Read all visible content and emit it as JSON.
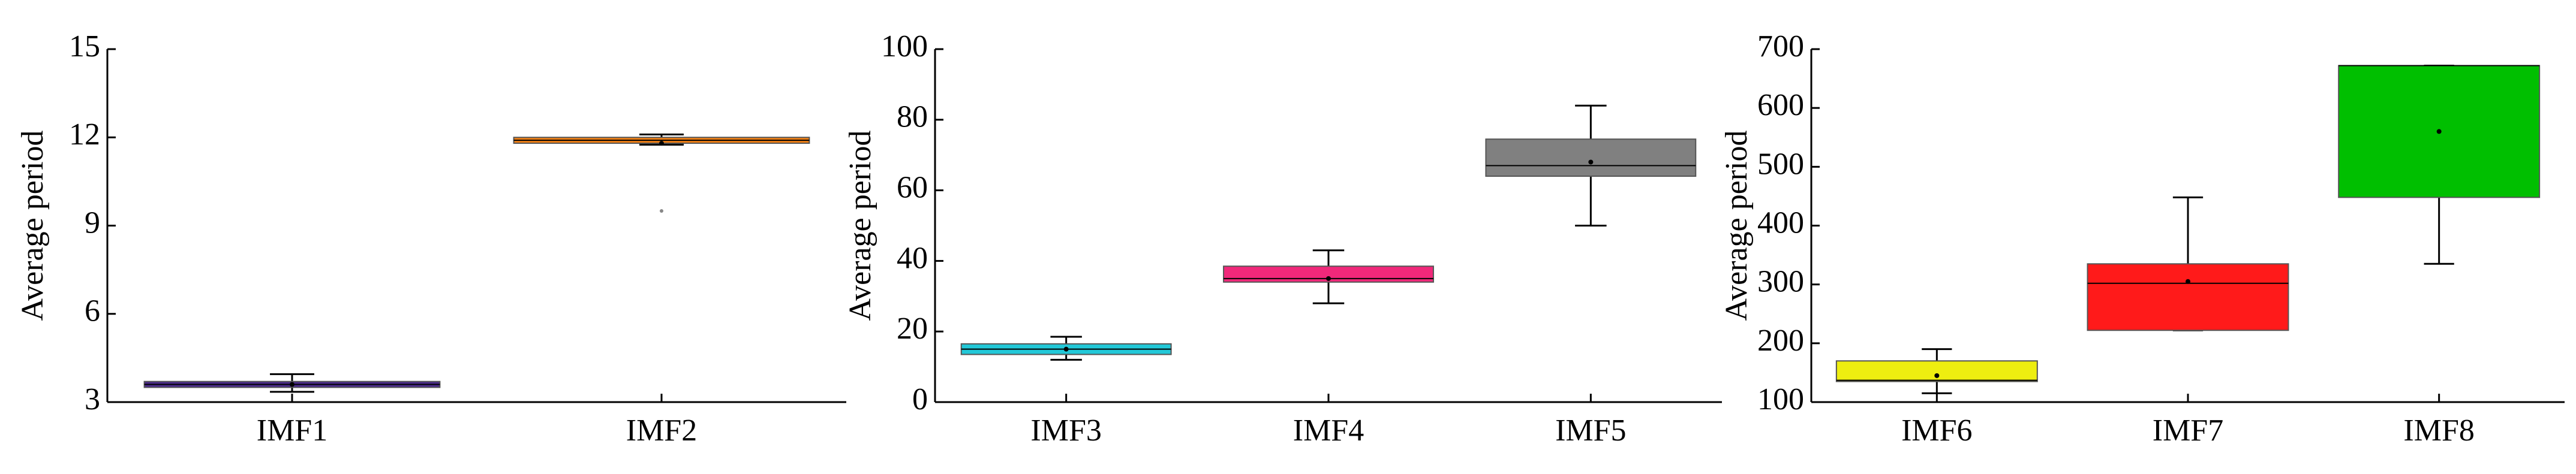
{
  "chart_data": [
    {
      "type": "box",
      "ylabel": "Average period",
      "ylim": [
        3,
        15
      ],
      "yticks": [
        3,
        6,
        9,
        12,
        15
      ],
      "categories": [
        "IMF1",
        "IMF2"
      ],
      "colors": [
        "#4b2a8c",
        "#f07f14"
      ],
      "boxes": [
        {
          "low": 3.35,
          "q1": 3.5,
          "median": 3.6,
          "q3": 3.7,
          "high": 3.95,
          "mean": 3.6
        },
        {
          "low": 11.75,
          "q1": 11.8,
          "median": 11.9,
          "q3": 12.0,
          "high": 12.1,
          "mean": 11.8,
          "outliers": [
            9.5
          ]
        }
      ]
    },
    {
      "type": "box",
      "ylabel": "Average period",
      "ylim": [
        0,
        100
      ],
      "yticks": [
        0,
        20,
        40,
        60,
        80,
        100
      ],
      "categories": [
        "IMF3",
        "IMF4",
        "IMF5"
      ],
      "colors": [
        "#22c8d8",
        "#f0287a",
        "#808080"
      ],
      "boxes": [
        {
          "low": 12,
          "q1": 13.5,
          "median": 15,
          "q3": 16.5,
          "high": 18.5,
          "mean": 15
        },
        {
          "low": 28,
          "q1": 34,
          "median": 35,
          "q3": 38.5,
          "high": 43,
          "mean": 35
        },
        {
          "low": 50,
          "q1": 64,
          "median": 67,
          "q3": 74.5,
          "high": 84,
          "mean": 68
        }
      ]
    },
    {
      "type": "box",
      "ylabel": "Average period",
      "ylim": [
        100,
        700
      ],
      "yticks": [
        100,
        200,
        300,
        400,
        500,
        600,
        700
      ],
      "categories": [
        "IMF6",
        "IMF7",
        "IMF8"
      ],
      "colors": [
        "#eeee10",
        "#ff1a1a",
        "#00bf00"
      ],
      "boxes": [
        {
          "low": 115,
          "q1": 135,
          "median": 137,
          "q3": 170,
          "high": 190,
          "mean": 145
        },
        {
          "low": 222,
          "q1": 222,
          "median": 302,
          "q3": 335,
          "high": 448,
          "mean": 305
        },
        {
          "low": 335,
          "q1": 448,
          "median": 672,
          "q3": 672,
          "high": 672,
          "mean": 560
        }
      ]
    }
  ]
}
